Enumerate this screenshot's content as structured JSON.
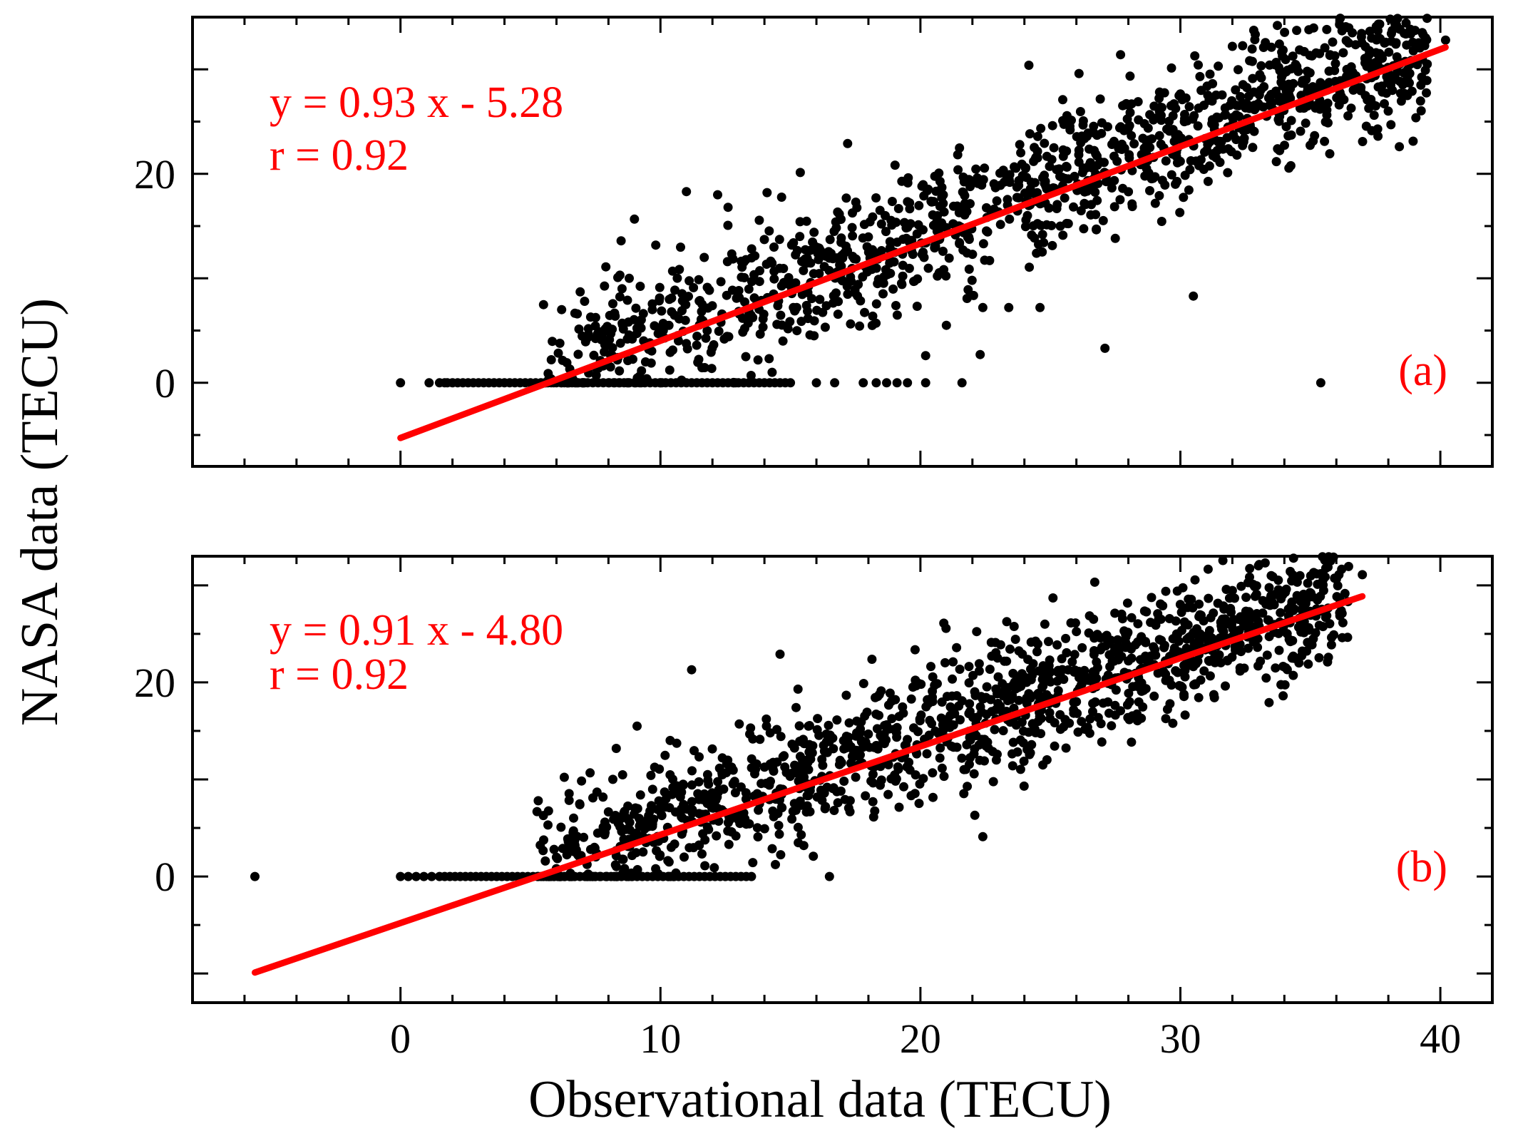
{
  "figure": {
    "xlabel": "Observational data (TECU)",
    "ylabel": "NASA data (TECU)",
    "marker_color": "#000000",
    "fit_color": "#ff0000"
  },
  "chart_data": [
    {
      "type": "scatter",
      "panel_label": "(a)",
      "equation": "y = 0.93 x - 5.28",
      "correlation": "r = 0.92",
      "xlim": [
        -8,
        42
      ],
      "ylim": [
        -8,
        35
      ],
      "x_ticks": [
        0,
        10,
        20,
        30,
        40
      ],
      "x_tick_labels": [
        "",
        "",
        "",
        "",
        ""
      ],
      "y_ticks": [
        0,
        20
      ],
      "y_tick_labels": [
        "0",
        "20"
      ],
      "fit": {
        "slope": 0.93,
        "intercept": -5.28,
        "x_range": [
          0,
          40.2
        ]
      },
      "zero_row": [
        0,
        1.1,
        1.5,
        1.7,
        1.8,
        2.0,
        2.2,
        2.4,
        2.6,
        2.8,
        3.0,
        3.2,
        3.4,
        3.6,
        3.8,
        4.0,
        4.2,
        4.4,
        4.6,
        4.8,
        5.0,
        5.2,
        5.4,
        5.6,
        5.8,
        6.0,
        6.2,
        6.4,
        6.6,
        6.8,
        7.0,
        7.2,
        7.4,
        7.6,
        7.8,
        8.0,
        8.2,
        8.4,
        8.6,
        8.8,
        9.0,
        9.2,
        9.4,
        9.6,
        9.8,
        10.0,
        10.2,
        10.4,
        10.6,
        10.8,
        11.0,
        11.2,
        11.4,
        11.6,
        11.8,
        12.0,
        12.2,
        12.4,
        12.6,
        12.8,
        13.0,
        13.2,
        13.4,
        13.6,
        13.8,
        14.0,
        14.2,
        14.4,
        14.6,
        14.8,
        15.0,
        16.0,
        16.7,
        17.8,
        18.3,
        18.7,
        19.1,
        19.5,
        20.2,
        21.6,
        35.4
      ],
      "outliers": [
        [
          11.0,
          18.3
        ],
        [
          12.2,
          18.0
        ],
        [
          30.5,
          8.3
        ],
        [
          27.1,
          3.3
        ],
        [
          22.3,
          2.7
        ],
        [
          22.4,
          7.2
        ],
        [
          23.4,
          7.2
        ],
        [
          24.6,
          7.2
        ],
        [
          21.0,
          5.5
        ],
        [
          20.2,
          2.6
        ],
        [
          12.6,
          16.8
        ],
        [
          14.1,
          18.2
        ],
        [
          17.2,
          22.9
        ],
        [
          37.6,
          23.6
        ],
        [
          38.1,
          24.7
        ],
        [
          26.1,
          29.6
        ],
        [
          27.7,
          31.4
        ],
        [
          32.0,
          32.2
        ],
        [
          33.2,
          32.1
        ],
        [
          37.9,
          32.6
        ],
        [
          40.2,
          32.8
        ],
        [
          6.2,
          7.0
        ],
        [
          6.8,
          6.6
        ],
        [
          7.9,
          11.1
        ],
        [
          8.8,
          10.0
        ]
      ],
      "cloud": {
        "x_min": 5.5,
        "x_max": 39.5,
        "spread": 3.2,
        "count": 1300,
        "seed": 11
      }
    },
    {
      "type": "scatter",
      "panel_label": "(b)",
      "equation": "y = 0.91 x - 4.80",
      "correlation": "r = 0.92",
      "xlim": [
        -8,
        42
      ],
      "ylim": [
        -13,
        33
      ],
      "x_ticks": [
        0,
        10,
        20,
        30,
        40
      ],
      "x_tick_labels": [
        "0",
        "10",
        "20",
        "30",
        "40"
      ],
      "y_ticks": [
        0,
        20
      ],
      "y_tick_labels": [
        "0",
        "20"
      ],
      "fit": {
        "slope": 0.91,
        "intercept": -4.8,
        "x_range": [
          -5.6,
          37.0
        ]
      },
      "zero_row": [
        -5.6,
        0,
        0.3,
        0.6,
        0.9,
        1.2,
        1.5,
        1.7,
        1.9,
        2.1,
        2.3,
        2.5,
        2.7,
        2.9,
        3.1,
        3.3,
        3.5,
        3.7,
        3.9,
        4.1,
        4.3,
        4.5,
        4.7,
        4.9,
        5.1,
        5.3,
        5.5,
        5.7,
        5.9,
        6.1,
        6.3,
        6.5,
        6.7,
        6.9,
        7.1,
        7.3,
        7.5,
        7.7,
        7.9,
        8.1,
        8.3,
        8.5,
        8.7,
        8.9,
        9.1,
        9.3,
        9.5,
        9.7,
        9.9,
        10.1,
        10.3,
        10.5,
        10.7,
        10.9,
        11.1,
        11.3,
        11.5,
        11.7,
        11.9,
        12.1,
        12.3,
        12.5,
        12.7,
        12.9,
        13.1,
        13.3,
        13.5,
        16.5
      ],
      "outliers": [
        [
          11.2,
          21.3
        ],
        [
          9.1,
          15.5
        ],
        [
          8.3,
          13.2
        ],
        [
          14.6,
          22.9
        ],
        [
          20.9,
          26.1
        ],
        [
          22.4,
          4.1
        ],
        [
          29.6,
          17.8
        ],
        [
          25.1,
          28.7
        ],
        [
          32.8,
          30.1
        ],
        [
          34.6,
          31.0
        ],
        [
          35.4,
          31.2
        ],
        [
          36.1,
          31.1
        ],
        [
          37.0,
          31.1
        ],
        [
          33.8,
          23.3
        ],
        [
          35.2,
          25.1
        ],
        [
          35.9,
          24.9
        ],
        [
          5.3,
          7.8
        ],
        [
          6.9,
          7.4
        ],
        [
          7.4,
          8.1
        ]
      ],
      "cloud": {
        "x_min": 5.0,
        "x_max": 36.5,
        "spread": 3.4,
        "count": 1400,
        "seed": 29
      }
    }
  ]
}
